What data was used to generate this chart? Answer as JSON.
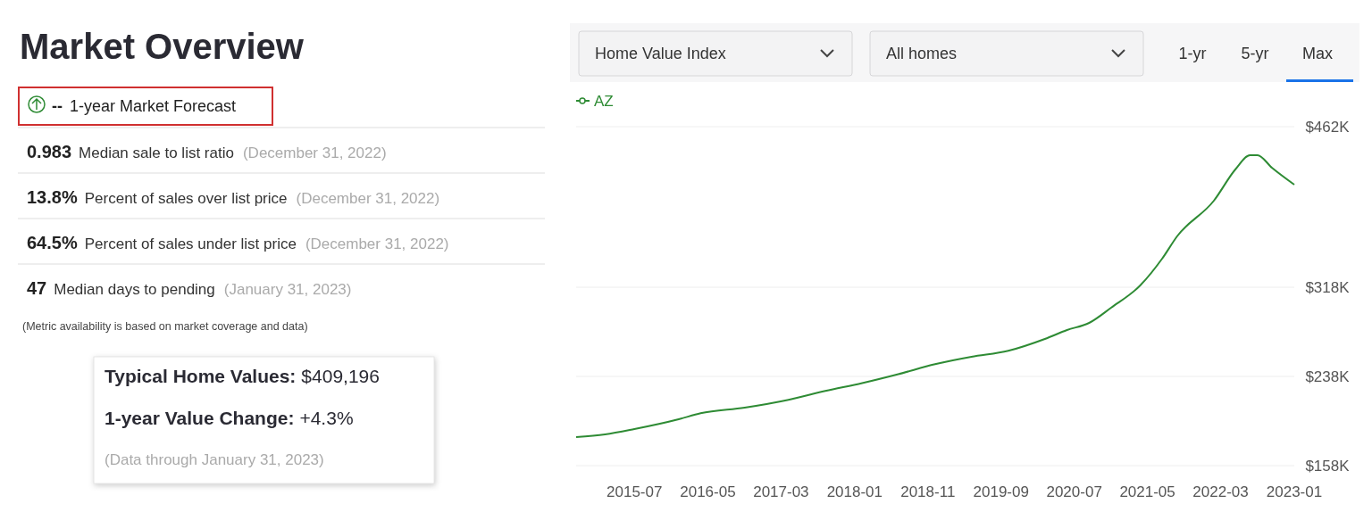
{
  "chart_data": [
    {
      "type": "other",
      "title": "Market Overview",
      "annotations": [
        "--",
        "1-year Market Forecast",
        "0.983",
        "Median sale to list ratio",
        "(December 31, 2022)",
        "13.8%",
        "Percent of sales over list price",
        "(December 31, 2022)",
        "64.5%",
        "Percent of sales under list price",
        "(December 31, 2022)",
        "47",
        "Median days to pending",
        "(January 31, 2023)",
        "(Metric availability is based on market coverage and data)",
        "Typical Home Values:",
        "$409,196",
        "1-year Value Change:",
        "+4.3%",
        "(Data through January 31, 2023)"
      ]
    },
    {
      "type": "line",
      "annotations": [
        "Home Value Index",
        "All homes",
        "1-yr",
        "5-yr",
        "Max"
      ],
      "x": [
        "2014-11",
        "2015-03",
        "2015-07",
        "2016-01",
        "2016-04",
        "2016-10",
        "2017-04",
        "2017-09",
        "2018-02",
        "2018-07",
        "2018-12",
        "2019-05",
        "2019-10",
        "2020-03",
        "2020-06",
        "2020-09",
        "2020-12",
        "2021-04",
        "2021-07",
        "2021-09",
        "2022-02",
        "2022-05",
        "2022-07",
        "2022-08",
        "2022-10",
        "2023-01"
      ],
      "series": [
        {
          "name": "AZ",
          "color": "#2e8b34",
          "values": [
            183600,
            186000,
            190800,
            199600,
            205000,
            210000,
            217000,
            225000,
            232000,
            240000,
            249000,
            255600,
            261000,
            271600,
            279600,
            286000,
            299600,
            319600,
            343600,
            363600,
            395600,
            423600,
            436400,
            436400,
            425000,
            410000
          ]
        }
      ],
      "xlim": [
        "2014-11",
        "2023-01"
      ],
      "xticks": [
        "2015-07",
        "2016-05",
        "2017-03",
        "2018-01",
        "2018-11",
        "2019-09",
        "2020-07",
        "2021-05",
        "2022-03",
        "2023-01"
      ],
      "ylim": [
        158000,
        462000
      ],
      "yticks": [
        {
          "value": 158000,
          "label": "$158K"
        },
        {
          "value": 238000,
          "label": "$238K"
        },
        {
          "value": 318000,
          "label": "$318K"
        },
        {
          "value": 462000,
          "label": "$462K"
        }
      ],
      "grid": "y",
      "legend": "top left"
    }
  ]
}
